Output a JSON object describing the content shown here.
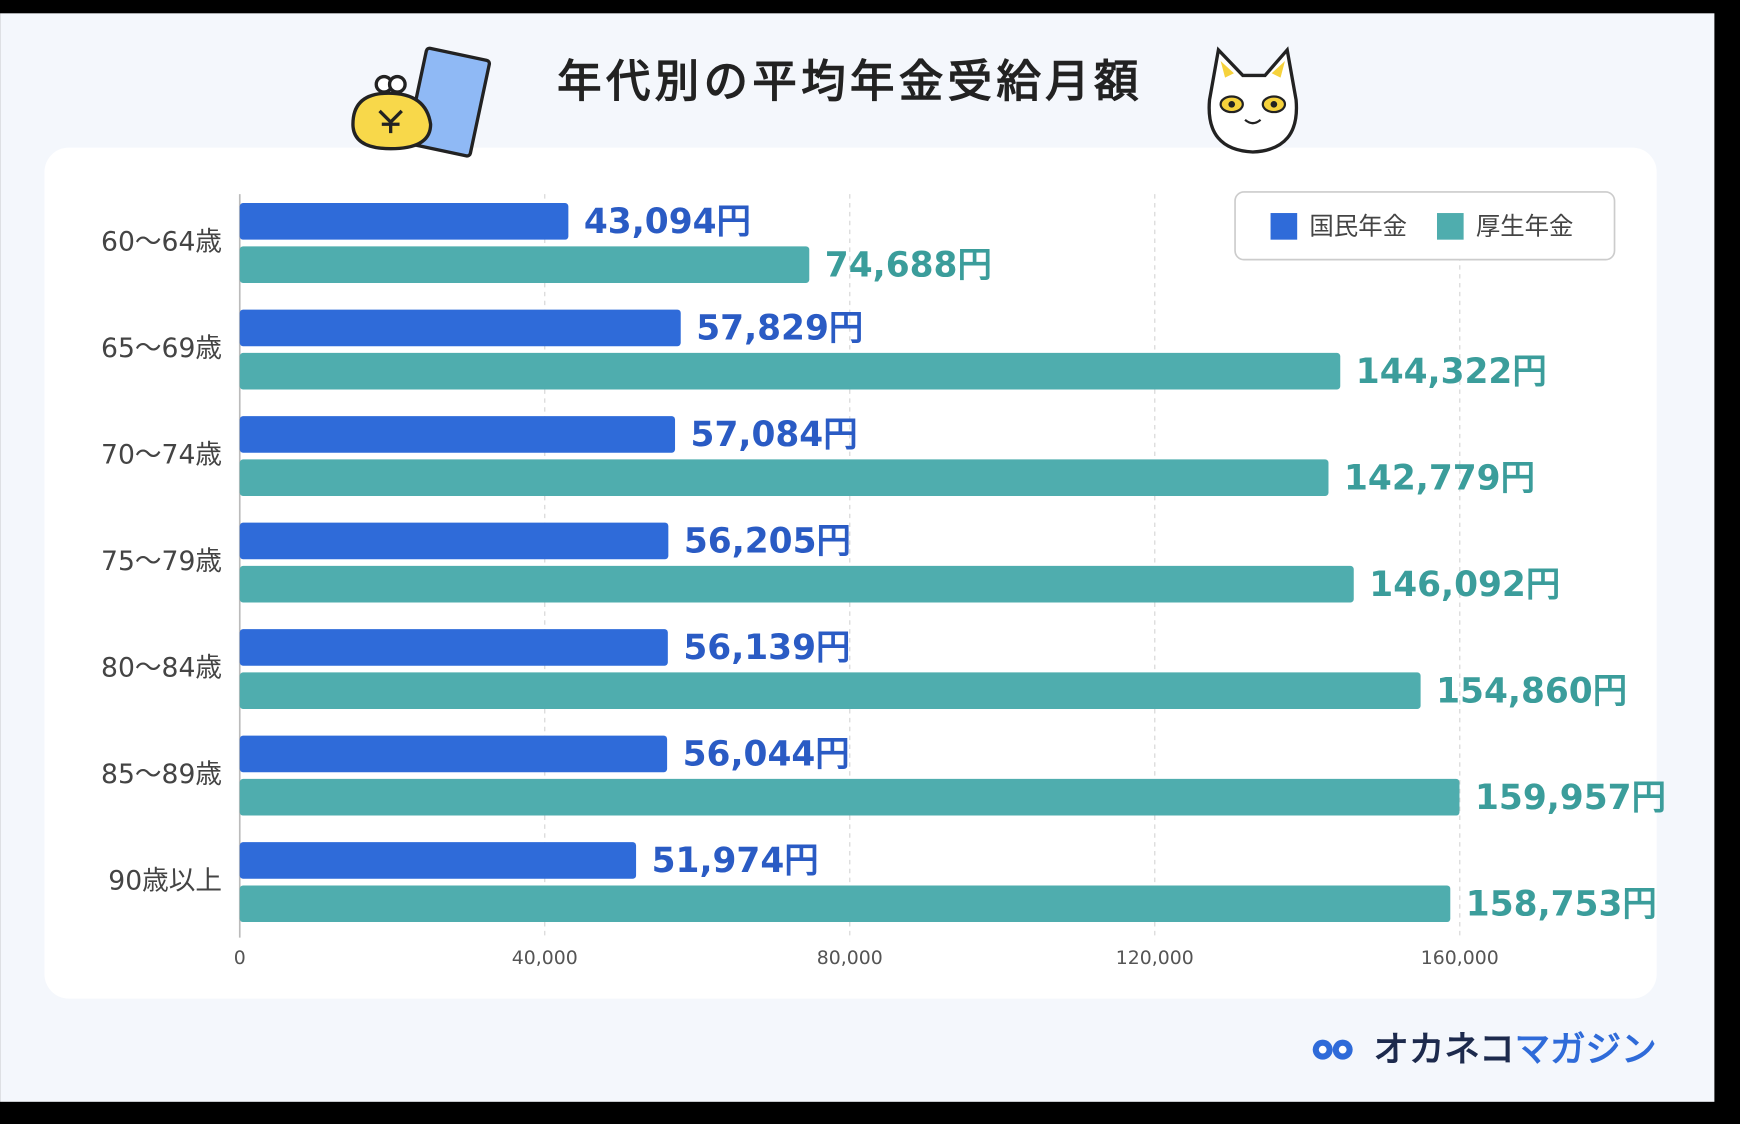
{
  "chart_data": {
    "type": "bar",
    "orientation": "horizontal",
    "title": "年代別の平均年金受給月額",
    "categories": [
      "60〜64歳",
      "65〜69歳",
      "70〜74歳",
      "75〜79歳",
      "80〜84歳",
      "85〜89歳",
      "90歳以上"
    ],
    "series": [
      {
        "name": "国民年金",
        "color": "#2f6bd9",
        "label_color": "#2a5bc4",
        "values": [
          43094,
          57829,
          57084,
          56205,
          56139,
          56044,
          51974
        ],
        "value_labels": [
          "43,094円",
          "57,829円",
          "57,084円",
          "56,205円",
          "56,139円",
          "56,044円",
          "51,974円"
        ]
      },
      {
        "name": "厚生年金",
        "color": "#4fadae",
        "label_color": "#3b9d9b",
        "values": [
          74688,
          144322,
          142779,
          146092,
          154860,
          159957,
          158753
        ],
        "value_labels": [
          "74,688円",
          "144,322円",
          "142,779円",
          "146,092円",
          "154,860円",
          "159,957円",
          "158,753円"
        ]
      }
    ],
    "xlim": [
      0,
      180000
    ],
    "xticks": [
      0,
      {
        "value": 40000,
        "label": "40,000"
      },
      {
        "value": 80000,
        "label": "80,000"
      },
      {
        "value": 120000,
        "label": "120,000"
      },
      {
        "value": 160000,
        "label": "160,000"
      }
    ],
    "grid": true,
    "legend": "upper right",
    "brand": [
      "オカネコ",
      "マガジン"
    ]
  }
}
